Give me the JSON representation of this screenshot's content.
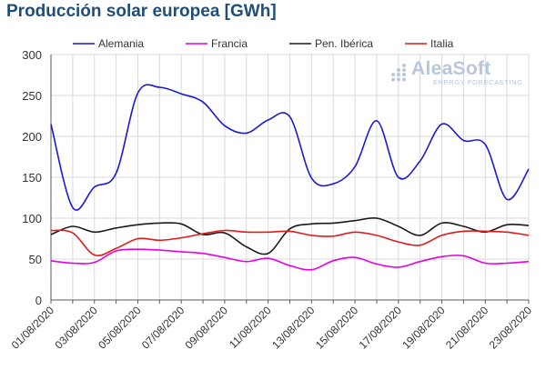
{
  "page": {
    "title": "Producción solar europea [GWh]"
  },
  "logo": {
    "name": "AleaSoft",
    "tagline": "ENERGY FORECASTING",
    "color": "#b8c7df",
    "icon": "dot-grid-icon"
  },
  "chart_data": {
    "type": "line",
    "title": "Producción solar europea [GWh]",
    "xlabel": "",
    "ylabel": "",
    "ylim": [
      0,
      300
    ],
    "yticks": [
      0,
      50,
      100,
      150,
      200,
      250,
      300
    ],
    "grid": true,
    "legend_position": "top",
    "x": [
      "01/08/2020",
      "02/08/2020",
      "03/08/2020",
      "04/08/2020",
      "05/08/2020",
      "06/08/2020",
      "07/08/2020",
      "08/08/2020",
      "09/08/2020",
      "10/08/2020",
      "11/08/2020",
      "12/08/2020",
      "13/08/2020",
      "14/08/2020",
      "15/08/2020",
      "16/08/2020",
      "17/08/2020",
      "18/08/2020",
      "19/08/2020",
      "20/08/2020",
      "21/08/2020",
      "22/08/2020",
      "23/08/2020"
    ],
    "x_tick_labels": [
      "01/08/2020",
      "03/08/2020",
      "05/08/2020",
      "07/08/2020",
      "09/08/2020",
      "11/08/2020",
      "13/08/2020",
      "15/08/2020",
      "17/08/2020",
      "19/08/2020",
      "21/08/2020",
      "23/08/2020"
    ],
    "series": [
      {
        "name": "Alemania",
        "color": "#1a1ad6",
        "values": [
          215,
          113,
          138,
          155,
          253,
          260,
          252,
          242,
          213,
          204,
          220,
          224,
          149,
          142,
          163,
          219,
          150,
          170,
          215,
          195,
          190,
          123,
          160
        ]
      },
      {
        "name": "Francia",
        "color": "#e600e6",
        "values": [
          48,
          45,
          46,
          60,
          62,
          61,
          59,
          57,
          52,
          47,
          51,
          42,
          37,
          48,
          52,
          44,
          40,
          47,
          53,
          54,
          45,
          45,
          47
        ]
      },
      {
        "name": "Pen. Ibérica",
        "color": "#1a1a1a",
        "values": [
          80,
          90,
          83,
          88,
          92,
          94,
          93,
          80,
          82,
          65,
          57,
          87,
          93,
          94,
          97,
          100,
          90,
          79,
          94,
          90,
          83,
          92,
          91
        ]
      },
      {
        "name": "Italia",
        "color": "#e31a1a",
        "values": [
          85,
          82,
          55,
          63,
          75,
          73,
          76,
          81,
          85,
          83,
          83,
          84,
          79,
          78,
          83,
          79,
          71,
          67,
          79,
          84,
          84,
          83,
          79
        ]
      }
    ]
  }
}
